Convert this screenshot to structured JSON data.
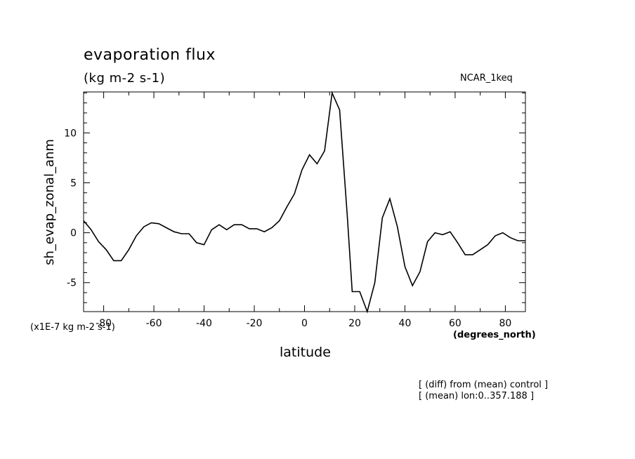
{
  "chart_data": {
    "type": "line",
    "title": "evaporation flux",
    "subtitle": "(kg m-2 s-1)",
    "model_label": "NCAR_1keq",
    "xlabel": "latitude",
    "ylabel": "sh_evap_zonal_anm",
    "y_unit_label": "(x1E-7 kg m-2 s-1)",
    "x_unit_label": "(degrees_north)",
    "notes": [
      "[ (diff) from (mean) control ]",
      "[ (mean) lon:0..357.188 ]"
    ],
    "xlim": [
      -88,
      88
    ],
    "ylim": [
      -7.9,
      14.1
    ],
    "x_ticks": [
      -80,
      -60,
      -40,
      -20,
      0,
      20,
      40,
      60,
      80
    ],
    "y_ticks": [
      -5,
      0,
      5,
      10
    ],
    "grid": false,
    "legend": "none",
    "line_color": "#000000",
    "series": [
      {
        "x": [
          -88,
          -85,
          -82,
          -79,
          -76,
          -73,
          -70,
          -67,
          -64,
          -61,
          -58,
          -55,
          -52,
          -49,
          -46,
          -43,
          -40,
          -37,
          -34,
          -31,
          -28,
          -25,
          -22,
          -19,
          -16,
          -13,
          -10,
          -7,
          -4,
          -1,
          2,
          5,
          8,
          11,
          14,
          17,
          19,
          22,
          25,
          28,
          31,
          34,
          37,
          40,
          43,
          46,
          49,
          52,
          55,
          58,
          61,
          64,
          67,
          70,
          73,
          76,
          79,
          82,
          85,
          88
        ],
        "y": [
          1.2,
          0.3,
          -0.9,
          -1.7,
          -2.8,
          -2.8,
          -1.7,
          -0.3,
          0.6,
          1.0,
          0.9,
          0.5,
          0.1,
          -0.1,
          -0.1,
          -1.0,
          -1.2,
          0.3,
          0.8,
          0.3,
          0.8,
          0.8,
          0.4,
          0.4,
          0.1,
          0.5,
          1.2,
          2.6,
          3.9,
          6.3,
          7.8,
          6.9,
          8.2,
          14.0,
          12.3,
          1.8,
          -5.9,
          -5.9,
          -7.9,
          -5.0,
          1.5,
          3.4,
          0.6,
          -3.4,
          -5.3,
          -3.9,
          -0.9,
          0.0,
          -0.2,
          0.1,
          -1.0,
          -2.2,
          -2.2,
          -1.7,
          -1.2,
          -0.3,
          0.0,
          -0.5,
          -0.8,
          -0.8
        ]
      }
    ]
  }
}
